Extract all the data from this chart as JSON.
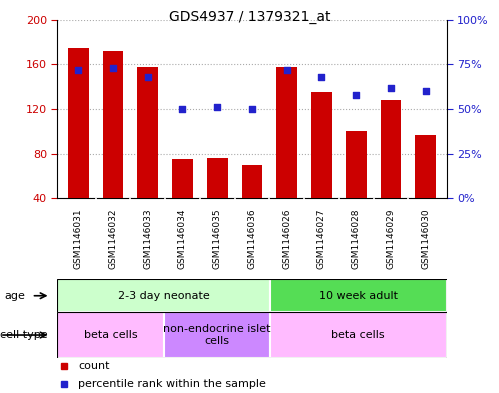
{
  "title": "GDS4937 / 1379321_at",
  "samples": [
    "GSM1146031",
    "GSM1146032",
    "GSM1146033",
    "GSM1146034",
    "GSM1146035",
    "GSM1146036",
    "GSM1146026",
    "GSM1146027",
    "GSM1146028",
    "GSM1146029",
    "GSM1146030"
  ],
  "counts": [
    175,
    172,
    158,
    75,
    76,
    70,
    158,
    135,
    100,
    128,
    97
  ],
  "percentiles": [
    72,
    73,
    68,
    50,
    51,
    50,
    72,
    68,
    58,
    62,
    60
  ],
  "ylim_left": [
    40,
    200
  ],
  "ylim_right": [
    0,
    100
  ],
  "yticks_left": [
    40,
    80,
    120,
    160,
    200
  ],
  "yticks_right": [
    0,
    25,
    50,
    75,
    100
  ],
  "bar_color": "#cc0000",
  "dot_color": "#2222cc",
  "age_groups": [
    {
      "label": "2-3 day neonate",
      "start": 0,
      "end": 6,
      "color": "#ccffcc"
    },
    {
      "label": "10 week adult",
      "start": 6,
      "end": 11,
      "color": "#55dd55"
    }
  ],
  "cell_types": [
    {
      "label": "beta cells",
      "start": 0,
      "end": 3,
      "color": "#ffbbff"
    },
    {
      "label": "non-endocrine islet\ncells",
      "start": 3,
      "end": 6,
      "color": "#cc88ff"
    },
    {
      "label": "beta cells",
      "start": 6,
      "end": 11,
      "color": "#ffbbff"
    }
  ],
  "bg_color": "#ffffff",
  "grid_color": "#aaaaaa",
  "tick_label_bg": "#cccccc",
  "right_ytick_color": "#2222cc",
  "left_ytick_color": "#cc0000",
  "label_fontsize": 8,
  "title_fontsize": 10,
  "tick_fontsize": 8,
  "sample_fontsize": 6.5
}
